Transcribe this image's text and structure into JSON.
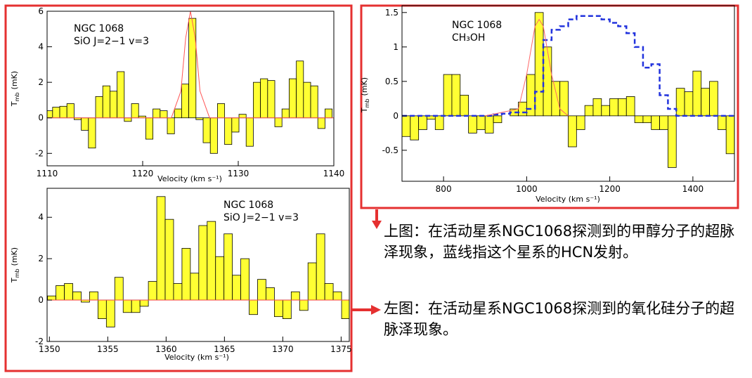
{
  "chart_data": [
    {
      "type": "bar",
      "annotations": [
        "NGC 1068",
        "SiO J=2−1 v=3"
      ],
      "xlabel": "Velocity (km s⁻¹)",
      "ylabel": {
        "main": "T",
        "sub": "mb",
        "unit": "(mK)"
      },
      "xlim": [
        1110,
        1140
      ],
      "ylim": [
        -2.7,
        6
      ],
      "xticks": [
        1110,
        1120,
        1130,
        1140
      ],
      "yticks": [
        -2,
        0,
        2,
        4,
        6
      ],
      "series": [
        {
          "kind": "bar",
          "color": "#ffff33",
          "x": [
            1110.2,
            1110.95,
            1111.7,
            1112.45,
            1113.2,
            1113.95,
            1114.7,
            1115.45,
            1116.2,
            1116.95,
            1117.7,
            1118.45,
            1119.2,
            1119.95,
            1120.7,
            1121.45,
            1122.2,
            1122.95,
            1123.7,
            1124.45,
            1125.2,
            1125.95,
            1126.7,
            1127.45,
            1128.2,
            1128.95,
            1129.7,
            1130.45,
            1131.2,
            1131.95,
            1132.7,
            1133.45,
            1134.2,
            1134.95,
            1135.7,
            1136.45,
            1137.2,
            1137.95,
            1138.7,
            1139.45
          ],
          "values": [
            0.4,
            0.6,
            0.65,
            0.8,
            -0.1,
            -0.7,
            -1.7,
            1.2,
            1.8,
            1.5,
            2.6,
            -0.2,
            0.8,
            0.1,
            -1.2,
            0.5,
            0.4,
            -0.9,
            0.5,
            1.9,
            5.6,
            -0.1,
            -1.4,
            -2.0,
            0.8,
            -1.5,
            -0.8,
            0.2,
            -1.6,
            2.0,
            2.2,
            2.1,
            -0.5,
            0.5,
            2.2,
            3.2,
            2.0,
            1.8,
            -0.6,
            0.5
          ]
        },
        {
          "kind": "line",
          "color": "#ff5555",
          "x": [
            1110,
            1123,
            1124,
            1124.5,
            1125,
            1125.5,
            1126,
            1127,
            1140
          ],
          "values": [
            0,
            0,
            1.5,
            4.5,
            6,
            4.5,
            1.5,
            0,
            0
          ]
        }
      ]
    },
    {
      "type": "bar",
      "annotations": [
        "NGC 1068",
        "SiO J=2−1 v=3"
      ],
      "xlabel": "Velocity (km s⁻¹)",
      "ylabel": {
        "main": "T",
        "sub": "mb",
        "unit": "(mK)"
      },
      "xlim": [
        1349.8,
        1375.7
      ],
      "ylim": [
        -2,
        5.4
      ],
      "xticks": [
        1350,
        1355,
        1360,
        1365,
        1370,
        1375
      ],
      "yticks": [
        -2,
        0,
        2,
        4
      ],
      "series": [
        {
          "kind": "bar",
          "color": "#ffff33",
          "x": [
            1350.2,
            1350.92,
            1351.64,
            1352.36,
            1353.08,
            1353.8,
            1354.52,
            1355.24,
            1355.96,
            1356.68,
            1357.4,
            1358.12,
            1358.84,
            1359.56,
            1360.28,
            1361.0,
            1361.72,
            1362.44,
            1363.16,
            1363.88,
            1364.6,
            1365.32,
            1366.04,
            1366.76,
            1367.48,
            1368.2,
            1368.92,
            1369.64,
            1370.36,
            1371.08,
            1371.8,
            1372.52,
            1373.24,
            1373.96,
            1374.68,
            1375.4
          ],
          "values": [
            0.2,
            0.7,
            0.8,
            0.4,
            -0.1,
            0.4,
            -0.9,
            -1.3,
            1.1,
            -0.6,
            -0.6,
            -0.3,
            0.9,
            5.0,
            3.9,
            0.8,
            2.5,
            1.3,
            3.6,
            3.8,
            2.1,
            3.2,
            1.2,
            2.0,
            -0.7,
            1.0,
            0.6,
            -0.8,
            -0.9,
            0.4,
            -0.5,
            1.8,
            3.2,
            0.8,
            0.4,
            -0.9
          ]
        },
        {
          "kind": "line",
          "color": "#ff5555",
          "x": [
            1349.8,
            1375.7
          ],
          "values": [
            0,
            0
          ]
        }
      ]
    },
    {
      "type": "bar",
      "annotations": [
        "NGC 1068",
        "CH₃OH"
      ],
      "xlabel": "Velocity (km s⁻¹)",
      "ylabel": {
        "main": "T",
        "sub": "mb",
        "unit": "(mK)"
      },
      "xlim": [
        700,
        1500
      ],
      "ylim": [
        -0.95,
        1.6
      ],
      "xticks": [
        800,
        1000,
        1200,
        1400
      ],
      "yticks": [
        -0.5,
        0,
        0.5,
        1,
        1.5
      ],
      "series": [
        {
          "kind": "bar",
          "color": "#ffff33",
          "x": [
            710,
            730,
            750,
            770,
            790,
            810,
            830,
            850,
            870,
            890,
            910,
            930,
            950,
            970,
            990,
            1010,
            1030,
            1050,
            1070,
            1090,
            1110,
            1130,
            1150,
            1170,
            1190,
            1210,
            1230,
            1250,
            1270,
            1290,
            1310,
            1330,
            1350,
            1370,
            1390,
            1410,
            1430,
            1450,
            1470,
            1490
          ],
          "values": [
            -0.3,
            -0.35,
            -0.2,
            -0.05,
            -0.2,
            0.6,
            0.6,
            0.3,
            -0.25,
            -0.2,
            -0.25,
            -0.1,
            0.0,
            0.1,
            0.2,
            0.6,
            1.5,
            1.0,
            0.5,
            0.5,
            -0.45,
            -0.2,
            0.15,
            0.25,
            0.15,
            0.25,
            0.25,
            0.28,
            -0.1,
            -0.1,
            -0.2,
            -0.2,
            -0.75,
            0.4,
            0.35,
            0.65,
            0.4,
            0.5,
            -0.2,
            -0.55
          ]
        },
        {
          "kind": "step",
          "color": "#2233dd",
          "dash": true,
          "x": [
            710,
            730,
            750,
            770,
            790,
            810,
            830,
            850,
            870,
            890,
            910,
            930,
            950,
            970,
            990,
            1010,
            1030,
            1050,
            1070,
            1090,
            1110,
            1130,
            1150,
            1170,
            1190,
            1210,
            1230,
            1250,
            1270,
            1290,
            1310,
            1330,
            1350,
            1370,
            1390,
            1410,
            1430,
            1450,
            1470,
            1490
          ],
          "values": [
            0,
            0,
            0,
            0,
            0,
            0,
            0,
            0,
            0,
            0,
            0,
            0.02,
            0.03,
            0.05,
            0.05,
            0.1,
            0.35,
            1.1,
            1.25,
            1.3,
            1.4,
            1.45,
            1.45,
            1.45,
            1.4,
            1.35,
            1.3,
            1.2,
            1.0,
            0.7,
            0.75,
            0.3,
            0.1,
            0,
            0,
            0,
            0,
            0,
            0,
            0
          ]
        },
        {
          "kind": "line",
          "color": "#ff6666",
          "x": [
            900,
            980,
            1000,
            1020,
            1030,
            1040,
            1060,
            1080,
            1100
          ],
          "values": [
            0,
            0.1,
            0.6,
            1.3,
            1.4,
            1.3,
            0.6,
            0.1,
            0
          ]
        }
      ]
    }
  ],
  "captions": [
    "上图：在活动星系NGC1068探测到的甲醇分子的超脉泽现象，蓝线指这个星系的HCN发射。",
    "左图：在活动星系NGC1068探测到的氧化硅分子的超脉泽现象。"
  ]
}
